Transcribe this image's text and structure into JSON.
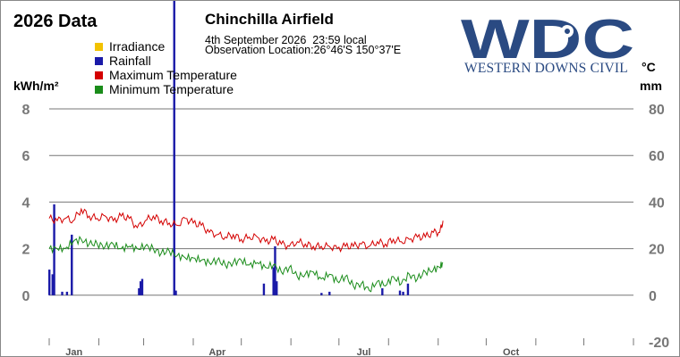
{
  "header": {
    "data_title": "2026 Data",
    "station": "Chinchilla Airfield",
    "obs_time": "4th September 2026  23:59 local",
    "obs_location": "Observation Location:26°46'S 150°37'E"
  },
  "logo": {
    "text": "WDC",
    "subtitle": "WESTERN DOWNS CIVIL",
    "icon": "gear-icon",
    "color": "#2a4a82"
  },
  "units": {
    "left": "kWh/m²",
    "right_top": "°C",
    "right_bottom": "mm"
  },
  "legend": [
    {
      "name": "Irradiance",
      "color": "#f2c200"
    },
    {
      "name": "Rainfall",
      "color": "#1a1aa8"
    },
    {
      "name": "Maximum Temperature",
      "color": "#d40000"
    },
    {
      "name": "Minimum Temperature",
      "color": "#1a8c1a"
    }
  ],
  "chart_data": {
    "type": "line",
    "x_axis": {
      "type": "date",
      "ticks": [
        "Jan",
        "Apr",
        "Jul",
        "Oct"
      ],
      "range": [
        "2026-01-01",
        "2026-12-31"
      ]
    },
    "y_left": {
      "label": "kWh/m²",
      "ticks": [
        0,
        2,
        4,
        6,
        8
      ],
      "range": [
        0,
        8
      ]
    },
    "y_right": {
      "label_top": "°C",
      "label_bottom": "mm",
      "ticks": [
        -20,
        0,
        20,
        40,
        60,
        80
      ],
      "range": [
        -20,
        80
      ]
    },
    "grid": true,
    "legend_position": "top-left",
    "series": [
      {
        "name": "Maximum Temperature",
        "color": "#d40000",
        "axis": "right",
        "points": [
          [
            "2026-01-01",
            33
          ],
          [
            "2026-01-06",
            32
          ],
          [
            "2026-01-11",
            33
          ],
          [
            "2026-01-16",
            32
          ],
          [
            "2026-01-21",
            37
          ],
          [
            "2026-01-26",
            34
          ],
          [
            "2026-01-31",
            33
          ],
          [
            "2026-02-05",
            34
          ],
          [
            "2026-02-10",
            32
          ],
          [
            "2026-02-15",
            34
          ],
          [
            "2026-02-20",
            33
          ],
          [
            "2026-02-25",
            29
          ],
          [
            "2026-03-02",
            32
          ],
          [
            "2026-03-07",
            34
          ],
          [
            "2026-03-12",
            32
          ],
          [
            "2026-03-17",
            31
          ],
          [
            "2026-03-22",
            30
          ],
          [
            "2026-03-27",
            33
          ],
          [
            "2026-04-01",
            31
          ],
          [
            "2026-04-06",
            30
          ],
          [
            "2026-04-11",
            27
          ],
          [
            "2026-04-16",
            26
          ],
          [
            "2026-04-21",
            25
          ],
          [
            "2026-04-26",
            26
          ],
          [
            "2026-05-01",
            24
          ],
          [
            "2026-05-06",
            25
          ],
          [
            "2026-05-11",
            25
          ],
          [
            "2026-05-16",
            23
          ],
          [
            "2026-05-21",
            24
          ],
          [
            "2026-05-26",
            22
          ],
          [
            "2026-05-31",
            21
          ],
          [
            "2026-06-05",
            23
          ],
          [
            "2026-06-10",
            22
          ],
          [
            "2026-06-15",
            21
          ],
          [
            "2026-06-20",
            21
          ],
          [
            "2026-06-25",
            21
          ],
          [
            "2026-06-30",
            20
          ],
          [
            "2026-07-05",
            21
          ],
          [
            "2026-07-10",
            21
          ],
          [
            "2026-07-15",
            22
          ],
          [
            "2026-07-20",
            21
          ],
          [
            "2026-07-25",
            23
          ],
          [
            "2026-07-30",
            22
          ],
          [
            "2026-08-04",
            24
          ],
          [
            "2026-08-09",
            23
          ],
          [
            "2026-08-14",
            24
          ],
          [
            "2026-08-19",
            25
          ],
          [
            "2026-08-24",
            25
          ],
          [
            "2026-08-29",
            27
          ],
          [
            "2026-09-02",
            27
          ],
          [
            "2026-09-04",
            32
          ]
        ]
      },
      {
        "name": "Minimum Temperature",
        "color": "#1a8c1a",
        "axis": "right",
        "points": [
          [
            "2026-01-01",
            20
          ],
          [
            "2026-01-06",
            20
          ],
          [
            "2026-01-11",
            20
          ],
          [
            "2026-01-16",
            23
          ],
          [
            "2026-01-21",
            24
          ],
          [
            "2026-01-26",
            22
          ],
          [
            "2026-01-31",
            22
          ],
          [
            "2026-02-05",
            21
          ],
          [
            "2026-02-10",
            22
          ],
          [
            "2026-02-15",
            20
          ],
          [
            "2026-02-20",
            21
          ],
          [
            "2026-02-25",
            20
          ],
          [
            "2026-03-02",
            21
          ],
          [
            "2026-03-07",
            20
          ],
          [
            "2026-03-12",
            18
          ],
          [
            "2026-03-17",
            19
          ],
          [
            "2026-03-22",
            17
          ],
          [
            "2026-03-27",
            16
          ],
          [
            "2026-04-01",
            16
          ],
          [
            "2026-04-06",
            15
          ],
          [
            "2026-04-11",
            14
          ],
          [
            "2026-04-16",
            15
          ],
          [
            "2026-04-21",
            13
          ],
          [
            "2026-04-26",
            14
          ],
          [
            "2026-05-01",
            15
          ],
          [
            "2026-05-06",
            13
          ],
          [
            "2026-05-11",
            14
          ],
          [
            "2026-05-16",
            12
          ],
          [
            "2026-05-21",
            13
          ],
          [
            "2026-05-26",
            10
          ],
          [
            "2026-05-31",
            12
          ],
          [
            "2026-06-05",
            8
          ],
          [
            "2026-06-10",
            9
          ],
          [
            "2026-06-15",
            10
          ],
          [
            "2026-06-20",
            7
          ],
          [
            "2026-06-25",
            9
          ],
          [
            "2026-06-30",
            6
          ],
          [
            "2026-07-05",
            8
          ],
          [
            "2026-07-10",
            4
          ],
          [
            "2026-07-15",
            5
          ],
          [
            "2026-07-20",
            2
          ],
          [
            "2026-07-25",
            6
          ],
          [
            "2026-07-30",
            4
          ],
          [
            "2026-08-04",
            8
          ],
          [
            "2026-08-09",
            5
          ],
          [
            "2026-08-14",
            9
          ],
          [
            "2026-08-19",
            7
          ],
          [
            "2026-08-24",
            10
          ],
          [
            "2026-08-29",
            11
          ],
          [
            "2026-09-02",
            12
          ],
          [
            "2026-09-04",
            14
          ]
        ]
      }
    ],
    "rainfall": {
      "name": "Rainfall",
      "color": "#1a1aa8",
      "axis": "right",
      "type": "bar",
      "days": [
        [
          "2026-01-01",
          11
        ],
        [
          "2026-01-03",
          9
        ],
        [
          "2026-01-04",
          39
        ],
        [
          "2026-01-09",
          1.5
        ],
        [
          "2026-01-12",
          1.5
        ],
        [
          "2026-01-15",
          26
        ],
        [
          "2026-02-26",
          3
        ],
        [
          "2026-02-27",
          6
        ],
        [
          "2026-02-28",
          7
        ],
        [
          "2026-03-20",
          135
        ],
        [
          "2026-03-21",
          2
        ],
        [
          "2026-05-15",
          5
        ],
        [
          "2026-05-21",
          12
        ],
        [
          "2026-05-22",
          21
        ],
        [
          "2026-05-23",
          6
        ],
        [
          "2026-06-20",
          1
        ],
        [
          "2026-06-25",
          1.5
        ],
        [
          "2026-07-28",
          3
        ],
        [
          "2026-08-08",
          2
        ],
        [
          "2026-08-10",
          1.5
        ],
        [
          "2026-08-13",
          5
        ]
      ]
    }
  }
}
